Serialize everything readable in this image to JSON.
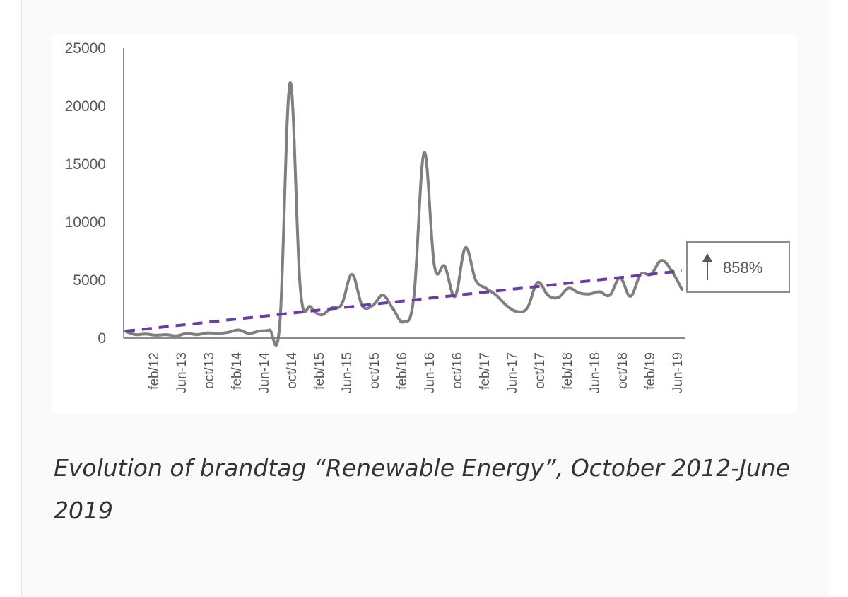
{
  "colors": {
    "series_line": "#7f7f7f",
    "trend_line": "#6a3aa6",
    "axis": "#8c8c8c",
    "tick_text": "#595959",
    "annotation_border": "#8c8c8c",
    "caption_text": "#333333"
  },
  "caption": "Evolution of brandtag “Renewable Energy”, October 2012-June 2019",
  "chart_data": {
    "type": "line",
    "title": "",
    "xlabel": "",
    "ylabel": "",
    "ylim": [
      0,
      25000
    ],
    "yticks": [
      0,
      5000,
      10000,
      15000,
      20000,
      25000
    ],
    "x_tick_labels": [
      "feb/12",
      "Jun-13",
      "oct/13",
      "feb/14",
      "Jun-14",
      "oct/14",
      "feb/15",
      "Jun-15",
      "oct/15",
      "feb/16",
      "Jun-16",
      "oct/16",
      "feb/17",
      "Jun-17",
      "oct/17",
      "feb/18",
      "Jun-18",
      "oct/18",
      "feb/19",
      "Jun-19"
    ],
    "grid": false,
    "series": [
      {
        "name": "Renewable Energy",
        "values": [
          600,
          300,
          350,
          250,
          300,
          200,
          400,
          300,
          450,
          400,
          500,
          700,
          400,
          600,
          700,
          1200,
          22000,
          4200,
          2700,
          2000,
          2600,
          2900,
          5500,
          2800,
          2800,
          3700,
          2500,
          1400,
          3500,
          16000,
          6200,
          6200,
          3600,
          7800,
          5000,
          4300,
          3700,
          2800,
          2300,
          2600,
          4800,
          3700,
          3500,
          4300,
          3900,
          3800,
          4000,
          3700,
          5200,
          3600,
          5500,
          5500,
          6700,
          5800,
          4200
        ]
      }
    ],
    "trend": {
      "name": "Trend",
      "style": "dashed",
      "start_value": 600,
      "end_value": 5800
    },
    "annotations": [
      {
        "text": "858%",
        "arrow": "up",
        "placement": "right"
      }
    ]
  }
}
